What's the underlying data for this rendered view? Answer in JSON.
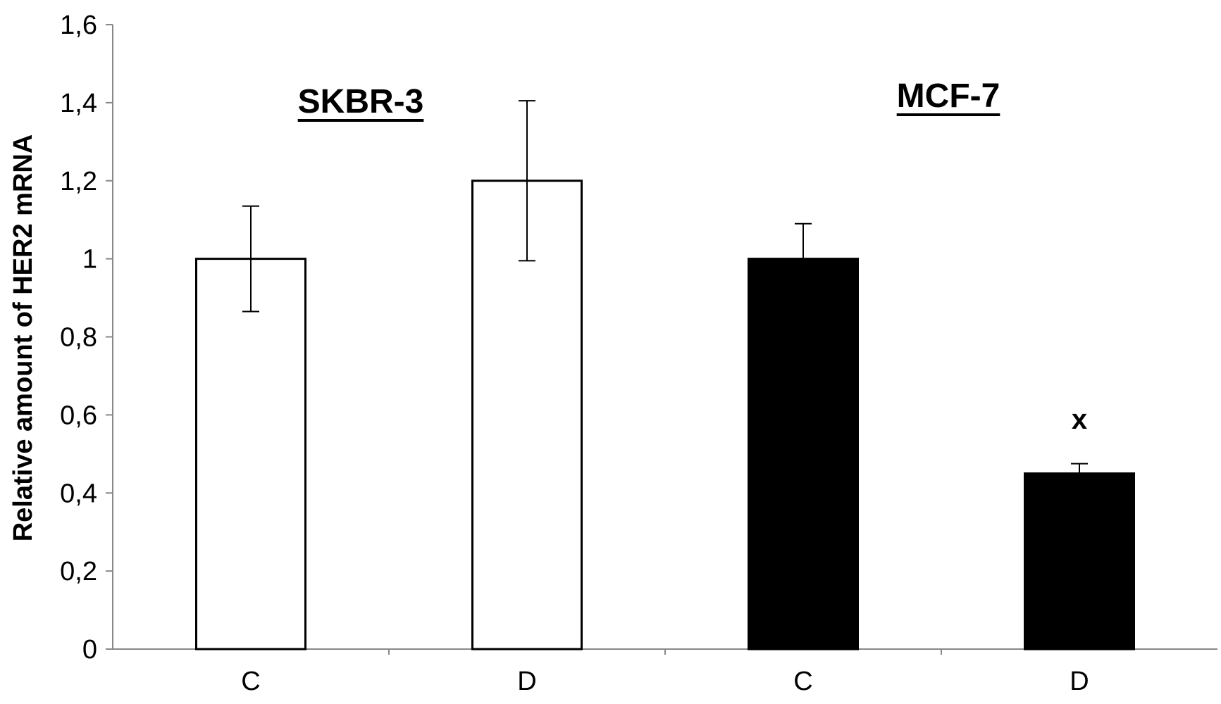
{
  "chart_data": {
    "type": "bar",
    "title": "",
    "xlabel": "",
    "ylabel": "Relative amount of HER2 mRNA",
    "ylim": [
      0,
      1.6
    ],
    "yticks": [
      0,
      0.2,
      0.4,
      0.6,
      0.8,
      1,
      1.2,
      1.4,
      1.6
    ],
    "ytick_labels": [
      "0",
      "0,2",
      "0,4",
      "0,6",
      "0,8",
      "1",
      "1,2",
      "1,4",
      "1,6"
    ],
    "grid": false,
    "groups": [
      {
        "name": "SKBR-3",
        "fill": "#ffffff",
        "bars": [
          {
            "category": "C",
            "value": 1.0,
            "error": 0.135
          },
          {
            "category": "D",
            "value": 1.2,
            "error": 0.205
          }
        ]
      },
      {
        "name": "MCF-7",
        "fill": "#000000",
        "bars": [
          {
            "category": "C",
            "value": 1.0,
            "error": 0.09
          },
          {
            "category": "D",
            "value": 0.45,
            "error": 0.025
          }
        ]
      }
    ],
    "annotations": [
      {
        "text": "x",
        "group": "MCF-7",
        "category": "D",
        "y": 0.59
      }
    ]
  }
}
